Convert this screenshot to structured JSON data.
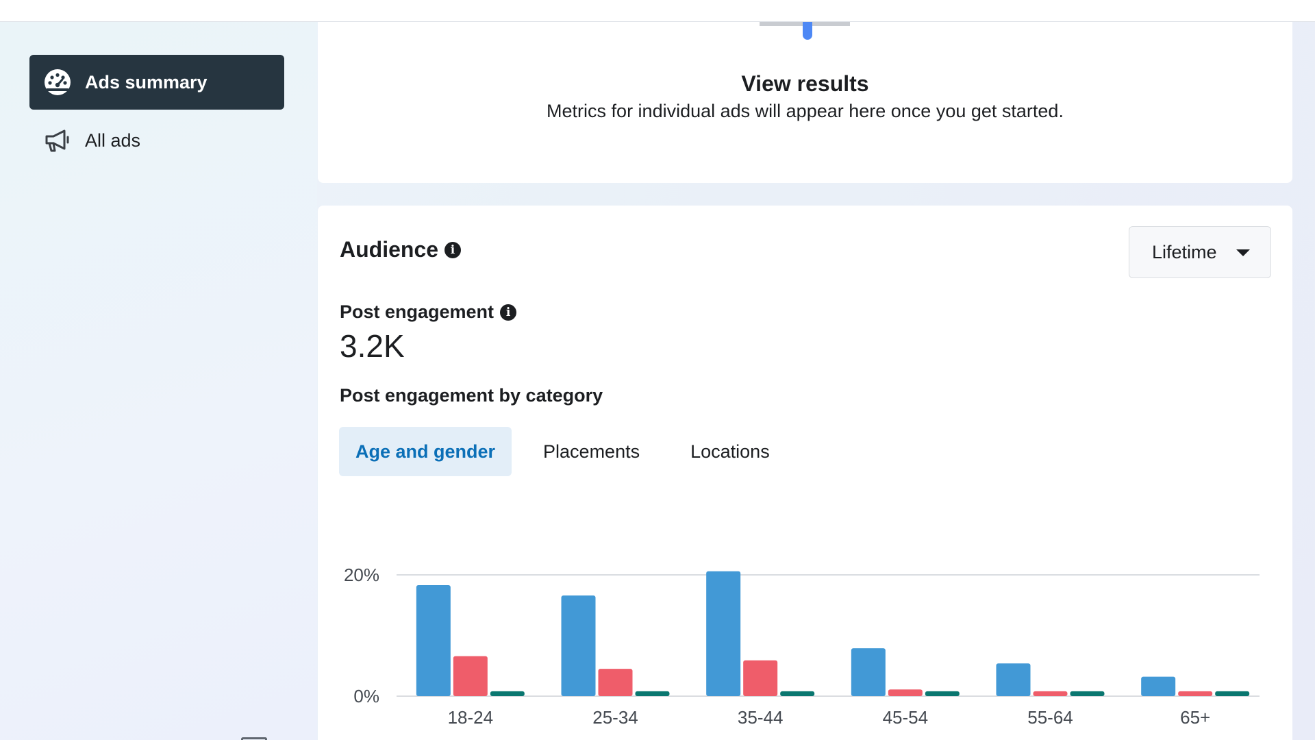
{
  "sidebar": {
    "items": [
      {
        "label": "Ads summary",
        "icon": "dashboard-icon",
        "active": true
      },
      {
        "label": "All ads",
        "icon": "megaphone-icon",
        "active": false
      }
    ]
  },
  "results_card": {
    "title": "View results",
    "subtitle": "Metrics for individual ads will appear here once you get started."
  },
  "audience": {
    "title": "Audience",
    "range_select": "Lifetime",
    "metric_label": "Post engagement",
    "metric_value": "3.2K",
    "category_label": "Post engagement by category",
    "tabs": [
      {
        "label": "Age and gender",
        "active": true
      },
      {
        "label": "Placements",
        "active": false
      },
      {
        "label": "Locations",
        "active": false
      }
    ]
  },
  "colors": {
    "series_1": "#4299d6",
    "series_2": "#ef5d6a",
    "series_3": "#0a7770"
  },
  "chart_data": {
    "type": "bar",
    "categories": [
      "18-24",
      "25-34",
      "35-44",
      "45-54",
      "55-64",
      "65+"
    ],
    "series": [
      {
        "values": [
          18.3,
          16.6,
          20.6,
          7.9,
          5.4,
          3.2
        ]
      },
      {
        "values": [
          6.6,
          4.5,
          5.9,
          1.1,
          0.8,
          0.8
        ]
      },
      {
        "values": [
          0.8,
          0.8,
          0.8,
          0.8,
          0.8,
          0.8
        ]
      }
    ],
    "ytick_labels": [
      "0%",
      "20%"
    ],
    "ylim": [
      0,
      20
    ],
    "grid": true
  }
}
